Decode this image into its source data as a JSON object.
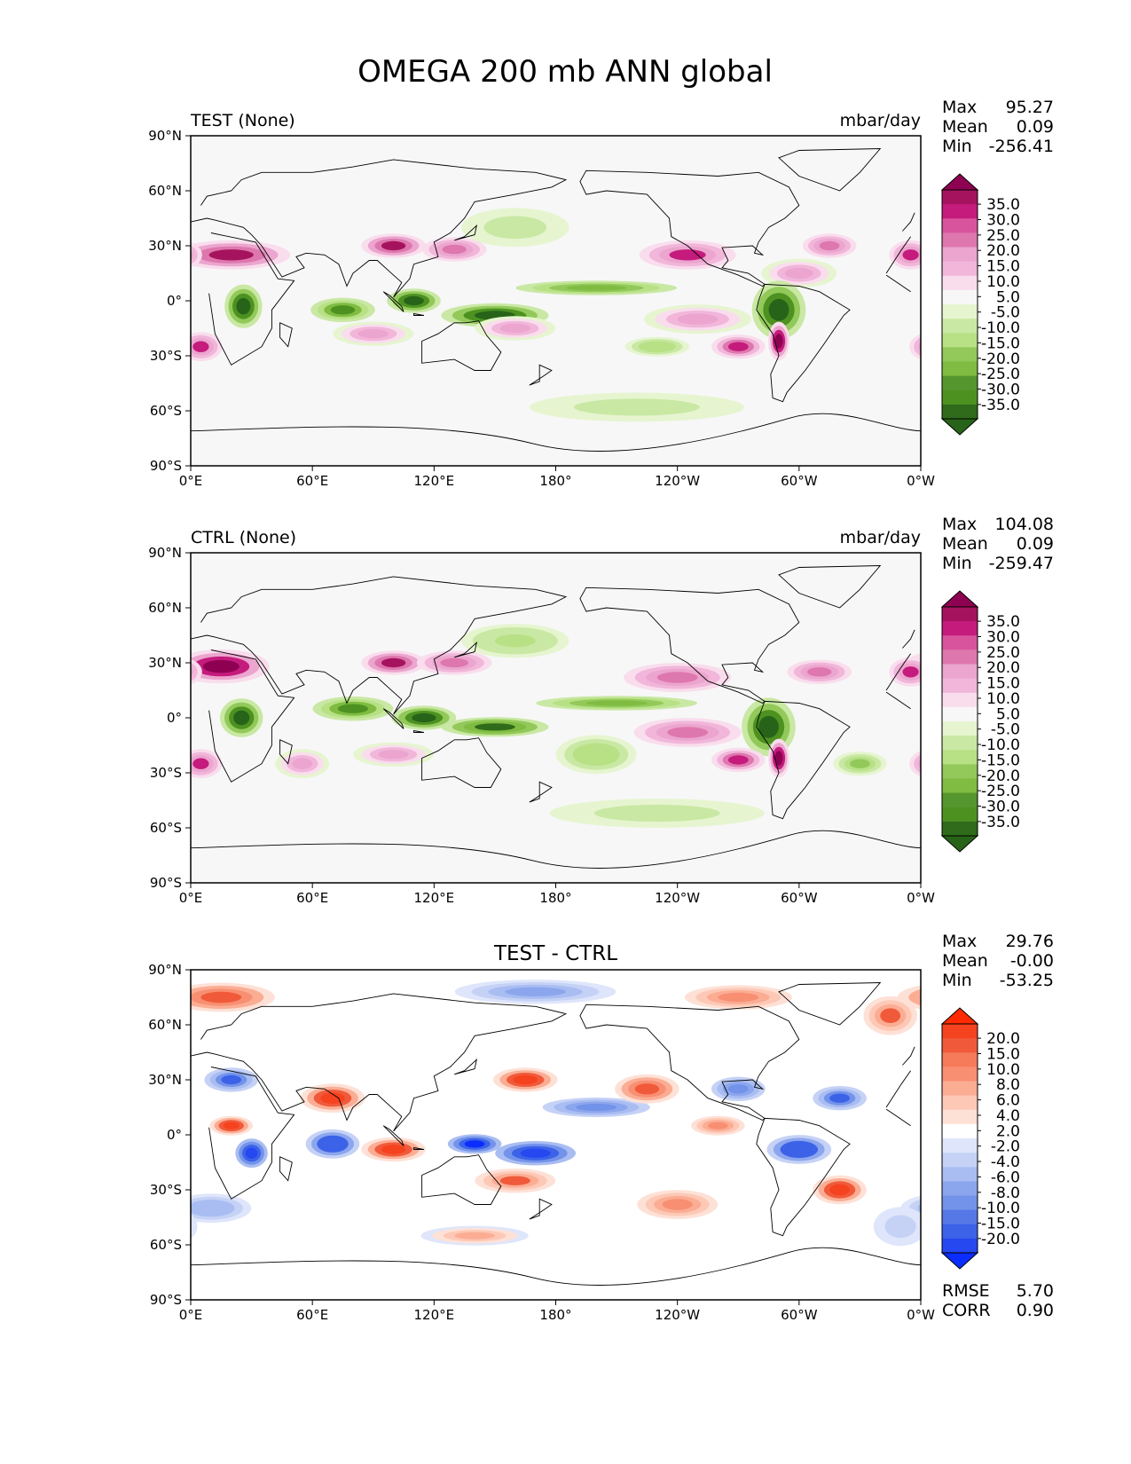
{
  "title": "OMEGA 200 mb ANN global",
  "chart_data": [
    {
      "type": "heatmap",
      "id": "test",
      "title_left": "TEST (None)",
      "title_center": "",
      "units": "mbar/day",
      "stats": [
        {
          "label": "Max",
          "value": "95.27"
        },
        {
          "label": "Mean",
          "value": "0.09"
        },
        {
          "label": "Min",
          "value": "-256.41"
        }
      ],
      "extra_stats": [],
      "xticks": [
        "0°E",
        "60°E",
        "120°E",
        "180°",
        "120°W",
        "60°W",
        "0°W"
      ],
      "yticks": [
        "90°N",
        "60°N",
        "30°N",
        "0°",
        "30°S",
        "60°S",
        "90°S"
      ],
      "xlim": [
        0,
        360
      ],
      "ylim": [
        -90,
        90
      ],
      "colorbar": {
        "levels": [
          "35.0",
          "30.0",
          "25.0",
          "20.0",
          "15.0",
          "10.0",
          "5.0",
          "-5.0",
          "-10.0",
          "-15.0",
          "-20.0",
          "-25.0",
          "-30.0",
          "-35.0"
        ],
        "colors": [
          "#8e0152",
          "#a5135f",
          "#c51b7d",
          "#d8559e",
          "#de77ae",
          "#eba5ce",
          "#f1b6da",
          "#f9dded",
          "#f7f7f7",
          "#e6f5d0",
          "#c9e8a4",
          "#b8e186",
          "#92c95a",
          "#7fbc41",
          "#56962e",
          "#4d9221",
          "#2f6b1a",
          "#276419"
        ]
      },
      "features": [
        {
          "lon": 20,
          "lat": 25,
          "value": 32,
          "sx": 22,
          "sy": 6
        },
        {
          "lon": 100,
          "lat": 30,
          "value": 30,
          "sx": 12,
          "sy": 5
        },
        {
          "lon": 130,
          "lat": 28,
          "value": 20,
          "sx": 12,
          "sy": 5
        },
        {
          "lon": 245,
          "lat": 25,
          "value": 25,
          "sx": 18,
          "sy": 6
        },
        {
          "lon": 300,
          "lat": 15,
          "value": 15,
          "sx": 14,
          "sy": 6
        },
        {
          "lon": 355,
          "lat": 25,
          "value": 25,
          "sx": 8,
          "sy": 6
        },
        {
          "lon": 26,
          "lat": -3,
          "value": -35,
          "sx": 7,
          "sy": 9
        },
        {
          "lon": 75,
          "lat": -5,
          "value": -30,
          "sx": 12,
          "sy": 5
        },
        {
          "lon": 110,
          "lat": 0,
          "value": -35,
          "sx": 10,
          "sy": 5
        },
        {
          "lon": 150,
          "lat": -8,
          "value": -35,
          "sx": 20,
          "sy": 5
        },
        {
          "lon": 200,
          "lat": 7,
          "value": -22,
          "sx": 30,
          "sy": 3
        },
        {
          "lon": 290,
          "lat": -5,
          "value": -35,
          "sx": 10,
          "sy": 12
        },
        {
          "lon": 290,
          "lat": -22,
          "value": 35,
          "sx": 4,
          "sy": 8
        },
        {
          "lon": 160,
          "lat": -15,
          "value": 15,
          "sx": 15,
          "sy": 5
        },
        {
          "lon": 90,
          "lat": -18,
          "value": 15,
          "sx": 15,
          "sy": 5
        },
        {
          "lon": 250,
          "lat": -10,
          "value": 18,
          "sx": 20,
          "sy": 6
        },
        {
          "lon": 270,
          "lat": -25,
          "value": 28,
          "sx": 10,
          "sy": 5
        },
        {
          "lon": 5,
          "lat": -25,
          "value": 25,
          "sx": 8,
          "sy": 6
        },
        {
          "lon": 230,
          "lat": -25,
          "value": -15,
          "sx": 12,
          "sy": 4
        },
        {
          "lon": 220,
          "lat": -58,
          "value": -10,
          "sx": 40,
          "sy": 6
        },
        {
          "lon": 160,
          "lat": 40,
          "value": -10,
          "sx": 20,
          "sy": 8
        },
        {
          "lon": 315,
          "lat": 30,
          "value": 22,
          "sx": 10,
          "sy": 5
        }
      ]
    },
    {
      "type": "heatmap",
      "id": "ctrl",
      "title_left": "CTRL (None)",
      "title_center": "",
      "units": "mbar/day",
      "stats": [
        {
          "label": "Max",
          "value": "104.08"
        },
        {
          "label": "Mean",
          "value": "0.09"
        },
        {
          "label": "Min",
          "value": "-259.47"
        }
      ],
      "extra_stats": [],
      "xticks": [
        "0°E",
        "60°E",
        "120°E",
        "180°",
        "120°W",
        "60°W",
        "0°W"
      ],
      "yticks": [
        "90°N",
        "60°N",
        "30°N",
        "0°",
        "30°S",
        "60°S",
        "90°S"
      ],
      "xlim": [
        0,
        360
      ],
      "ylim": [
        -90,
        90
      ],
      "colorbar": {
        "levels": [
          "35.0",
          "30.0",
          "25.0",
          "20.0",
          "15.0",
          "10.0",
          "5.0",
          "-5.0",
          "-10.0",
          "-15.0",
          "-20.0",
          "-25.0",
          "-30.0",
          "-35.0"
        ],
        "colors": [
          "#8e0152",
          "#a5135f",
          "#c51b7d",
          "#d8559e",
          "#de77ae",
          "#eba5ce",
          "#f1b6da",
          "#f9dded",
          "#f7f7f7",
          "#e6f5d0",
          "#c9e8a4",
          "#b8e186",
          "#92c95a",
          "#7fbc41",
          "#56962e",
          "#4d9221",
          "#2f6b1a",
          "#276419"
        ]
      },
      "features": [
        {
          "lon": 15,
          "lat": 28,
          "value": 35,
          "sx": 18,
          "sy": 7
        },
        {
          "lon": 100,
          "lat": 30,
          "value": 30,
          "sx": 12,
          "sy": 5
        },
        {
          "lon": 130,
          "lat": 30,
          "value": 20,
          "sx": 14,
          "sy": 5
        },
        {
          "lon": 240,
          "lat": 22,
          "value": 20,
          "sx": 20,
          "sy": 6
        },
        {
          "lon": 310,
          "lat": 25,
          "value": 22,
          "sx": 12,
          "sy": 5
        },
        {
          "lon": 355,
          "lat": 25,
          "value": 25,
          "sx": 8,
          "sy": 6
        },
        {
          "lon": 25,
          "lat": 0,
          "value": -35,
          "sx": 8,
          "sy": 8
        },
        {
          "lon": 80,
          "lat": 5,
          "value": -30,
          "sx": 15,
          "sy": 5
        },
        {
          "lon": 115,
          "lat": 0,
          "value": -35,
          "sx": 12,
          "sy": 5
        },
        {
          "lon": 150,
          "lat": -5,
          "value": -32,
          "sx": 20,
          "sy": 4
        },
        {
          "lon": 210,
          "lat": 8,
          "value": -25,
          "sx": 30,
          "sy": 3
        },
        {
          "lon": 285,
          "lat": -5,
          "value": -35,
          "sx": 10,
          "sy": 12
        },
        {
          "lon": 290,
          "lat": -22,
          "value": 35,
          "sx": 4,
          "sy": 8
        },
        {
          "lon": 200,
          "lat": -20,
          "value": -15,
          "sx": 15,
          "sy": 8
        },
        {
          "lon": 100,
          "lat": -20,
          "value": 18,
          "sx": 15,
          "sy": 5
        },
        {
          "lon": 245,
          "lat": -8,
          "value": 20,
          "sx": 20,
          "sy": 6
        },
        {
          "lon": 270,
          "lat": -23,
          "value": 28,
          "sx": 10,
          "sy": 5
        },
        {
          "lon": 5,
          "lat": -25,
          "value": 25,
          "sx": 8,
          "sy": 6
        },
        {
          "lon": 330,
          "lat": -25,
          "value": -20,
          "sx": 10,
          "sy": 5
        },
        {
          "lon": 230,
          "lat": -52,
          "value": -10,
          "sx": 40,
          "sy": 6
        },
        {
          "lon": 160,
          "lat": 42,
          "value": -12,
          "sx": 20,
          "sy": 7
        },
        {
          "lon": 55,
          "lat": -25,
          "value": 15,
          "sx": 10,
          "sy": 6
        }
      ]
    },
    {
      "type": "heatmap",
      "id": "diff",
      "title_left": "",
      "title_center": "TEST - CTRL",
      "units": "",
      "stats": [
        {
          "label": "Max",
          "value": "29.76"
        },
        {
          "label": "Mean",
          "value": "-0.00"
        },
        {
          "label": "Min",
          "value": "-53.25"
        }
      ],
      "extra_stats": [
        {
          "label": "RMSE",
          "value": "5.70"
        },
        {
          "label": "CORR",
          "value": "0.90"
        }
      ],
      "xticks": [
        "0°E",
        "60°E",
        "120°E",
        "180°",
        "120°W",
        "60°W",
        "0°W"
      ],
      "yticks": [
        "90°N",
        "60°N",
        "30°N",
        "0°",
        "30°S",
        "60°S",
        "90°S"
      ],
      "xlim": [
        0,
        360
      ],
      "ylim": [
        -90,
        90
      ],
      "colorbar": {
        "levels": [
          "20.0",
          "15.0",
          "10.0",
          "8.0",
          "6.0",
          "4.0",
          "2.0",
          "-2.0",
          "-4.0",
          "-6.0",
          "-8.0",
          "-10.0",
          "-15.0",
          "-20.0"
        ],
        "colors": [
          "#ff2a00",
          "#f5421f",
          "#f05a3a",
          "#f57b5b",
          "#f88f72",
          "#fbad94",
          "#fdc9b6",
          "#fee1d6",
          "#ffffff",
          "#dfe6fb",
          "#c5d2f6",
          "#a9bdf2",
          "#8ca6ee",
          "#7393ea",
          "#5677e6",
          "#3c62e8",
          "#2548f0",
          "#0b2dff"
        ]
      },
      "features": [
        {
          "lon": 15,
          "lat": 75,
          "value": 12,
          "sx": 20,
          "sy": 6
        },
        {
          "lon": 170,
          "lat": 78,
          "value": -8,
          "sx": 30,
          "sy": 5
        },
        {
          "lon": 270,
          "lat": 75,
          "value": 8,
          "sx": 20,
          "sy": 5
        },
        {
          "lon": 345,
          "lat": 65,
          "value": 10,
          "sx": 10,
          "sy": 8
        },
        {
          "lon": 20,
          "lat": 30,
          "value": -12,
          "sx": 10,
          "sy": 5
        },
        {
          "lon": 70,
          "lat": 20,
          "value": 15,
          "sx": 12,
          "sy": 6
        },
        {
          "lon": 20,
          "lat": 5,
          "value": 15,
          "sx": 8,
          "sy": 4
        },
        {
          "lon": 30,
          "lat": -10,
          "value": -18,
          "sx": 6,
          "sy": 6
        },
        {
          "lon": 70,
          "lat": -5,
          "value": -15,
          "sx": 10,
          "sy": 6
        },
        {
          "lon": 100,
          "lat": -8,
          "value": 15,
          "sx": 12,
          "sy": 5
        },
        {
          "lon": 140,
          "lat": -5,
          "value": -20,
          "sx": 10,
          "sy": 4
        },
        {
          "lon": 170,
          "lat": -10,
          "value": -18,
          "sx": 15,
          "sy": 5
        },
        {
          "lon": 165,
          "lat": 30,
          "value": 15,
          "sx": 12,
          "sy": 5
        },
        {
          "lon": 200,
          "lat": 15,
          "value": -10,
          "sx": 20,
          "sy": 4
        },
        {
          "lon": 225,
          "lat": 25,
          "value": 12,
          "sx": 12,
          "sy": 6
        },
        {
          "lon": 270,
          "lat": 25,
          "value": -10,
          "sx": 10,
          "sy": 5
        },
        {
          "lon": 320,
          "lat": 20,
          "value": -12,
          "sx": 10,
          "sy": 5
        },
        {
          "lon": 300,
          "lat": -8,
          "value": -15,
          "sx": 12,
          "sy": 6
        },
        {
          "lon": 320,
          "lat": -30,
          "value": 15,
          "sx": 10,
          "sy": 6
        },
        {
          "lon": 160,
          "lat": -25,
          "value": 10,
          "sx": 15,
          "sy": 5
        },
        {
          "lon": 10,
          "lat": -40,
          "value": -6,
          "sx": 15,
          "sy": 6
        },
        {
          "lon": 240,
          "lat": -38,
          "value": 8,
          "sx": 15,
          "sy": 6
        },
        {
          "lon": 140,
          "lat": -55,
          "value": 6,
          "sx": 20,
          "sy": 4
        },
        {
          "lon": 350,
          "lat": -50,
          "value": -4,
          "sx": 10,
          "sy": 8
        },
        {
          "lon": 260,
          "lat": 5,
          "value": 8,
          "sx": 10,
          "sy": 4
        }
      ]
    }
  ]
}
